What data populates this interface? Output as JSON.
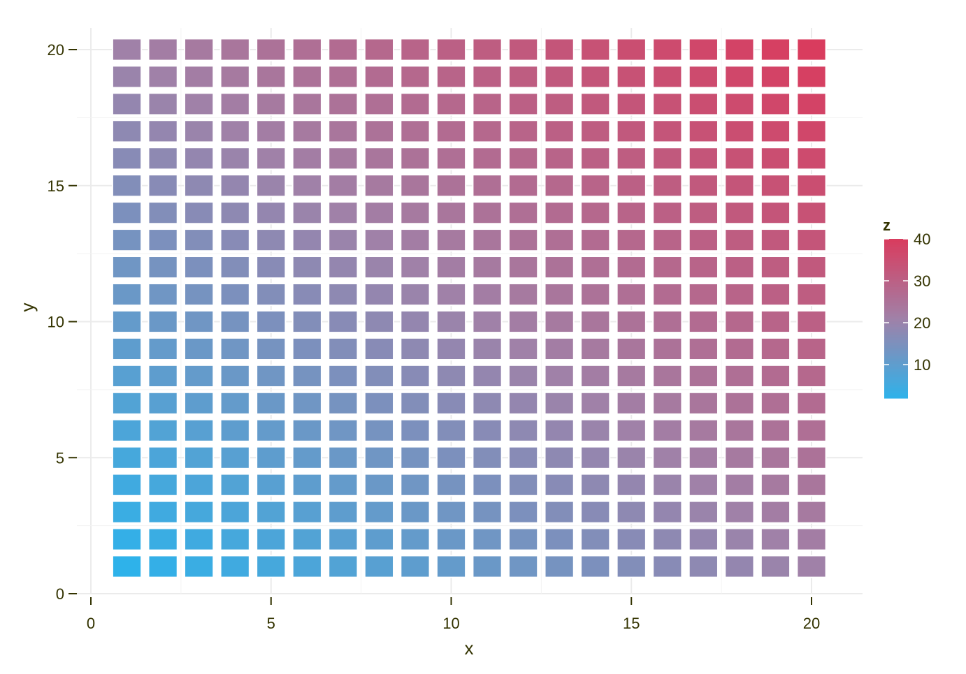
{
  "chart_data": {
    "type": "heatmap",
    "title": "",
    "xlabel": "x",
    "ylabel": "y",
    "xlim": [
      0,
      21.4
    ],
    "ylim": [
      0,
      21.0
    ],
    "x": [
      1,
      2,
      3,
      4,
      5,
      6,
      7,
      8,
      9,
      10,
      11,
      12,
      13,
      14,
      15,
      16,
      17,
      18,
      19,
      20
    ],
    "y": [
      1,
      2,
      3,
      4,
      5,
      6,
      7,
      8,
      9,
      10,
      11,
      12,
      13,
      14,
      15,
      16,
      17,
      18,
      19,
      20
    ],
    "z_rule": "z = x + y",
    "x_ticks": [
      0,
      5,
      10,
      15,
      20
    ],
    "y_ticks": [
      0,
      5,
      10,
      15,
      20
    ],
    "grid": true,
    "legend": {
      "title": "z",
      "position": "right",
      "ticks": [
        10,
        20,
        30,
        40
      ],
      "range": [
        2,
        40
      ]
    },
    "colors": {
      "low": "#2eb2ea",
      "mid": "#a081a8",
      "high": "#d93c5e"
    }
  }
}
